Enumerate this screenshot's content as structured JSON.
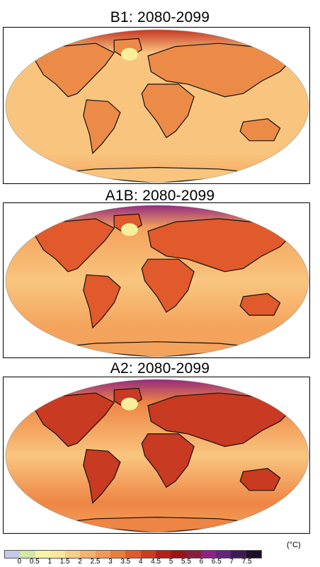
{
  "panels": [
    {
      "title": "B1: 2080-2099",
      "scenario": "B1"
    },
    {
      "title": "A1B: 2080-2099",
      "scenario": "A1B"
    },
    {
      "title": "A2: 2080-2099",
      "scenario": "A2"
    }
  ],
  "legend": {
    "unit": "(°C)",
    "ticks": [
      "0",
      "0.5",
      "1",
      "1.5",
      "2",
      "2.5",
      "3",
      "3.5",
      "4",
      "4.5",
      "5",
      "5.5",
      "6",
      "6.5",
      "7",
      "7.5"
    ],
    "colors": [
      "#c6c9e8",
      "#d3e8a6",
      "#f7f5a8",
      "#fbe7a1",
      "#f8cf8a",
      "#f4b36e",
      "#f09a56",
      "#ea7d3c",
      "#e05a2b",
      "#cf3a20",
      "#b71f1a",
      "#991515",
      "#8a1c3c",
      "#8c2283",
      "#66237a",
      "#3f1a52",
      "#1f0e2a"
    ]
  },
  "map_colors": {
    "ocean_base": [
      "#f9c57e",
      "#f4a35c",
      "#ee8544"
    ],
    "land_base": [
      "#ec8a48",
      "#e05a2b",
      "#c83a21"
    ],
    "arctic": [
      "#c12a1c",
      "#8c2283",
      "#8c2283"
    ],
    "cold_spot": "#f7ef9a"
  }
}
